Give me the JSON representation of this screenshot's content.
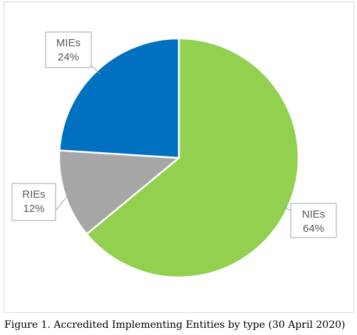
{
  "caption": "Figure 1. Accredited Implementing Entities by type (30 April 2020)",
  "chart_data": {
    "type": "pie",
    "categories": [
      "NIEs",
      "RIEs",
      "MIEs"
    ],
    "values": [
      64,
      12,
      24
    ],
    "value_labels": [
      "64%",
      "12%",
      "24%"
    ],
    "colors": [
      "#92d050",
      "#a6a6a6",
      "#0070c0"
    ],
    "start_angle_deg": 0,
    "direction": "clockwise",
    "legend": "none",
    "data_labels": "callouts"
  }
}
